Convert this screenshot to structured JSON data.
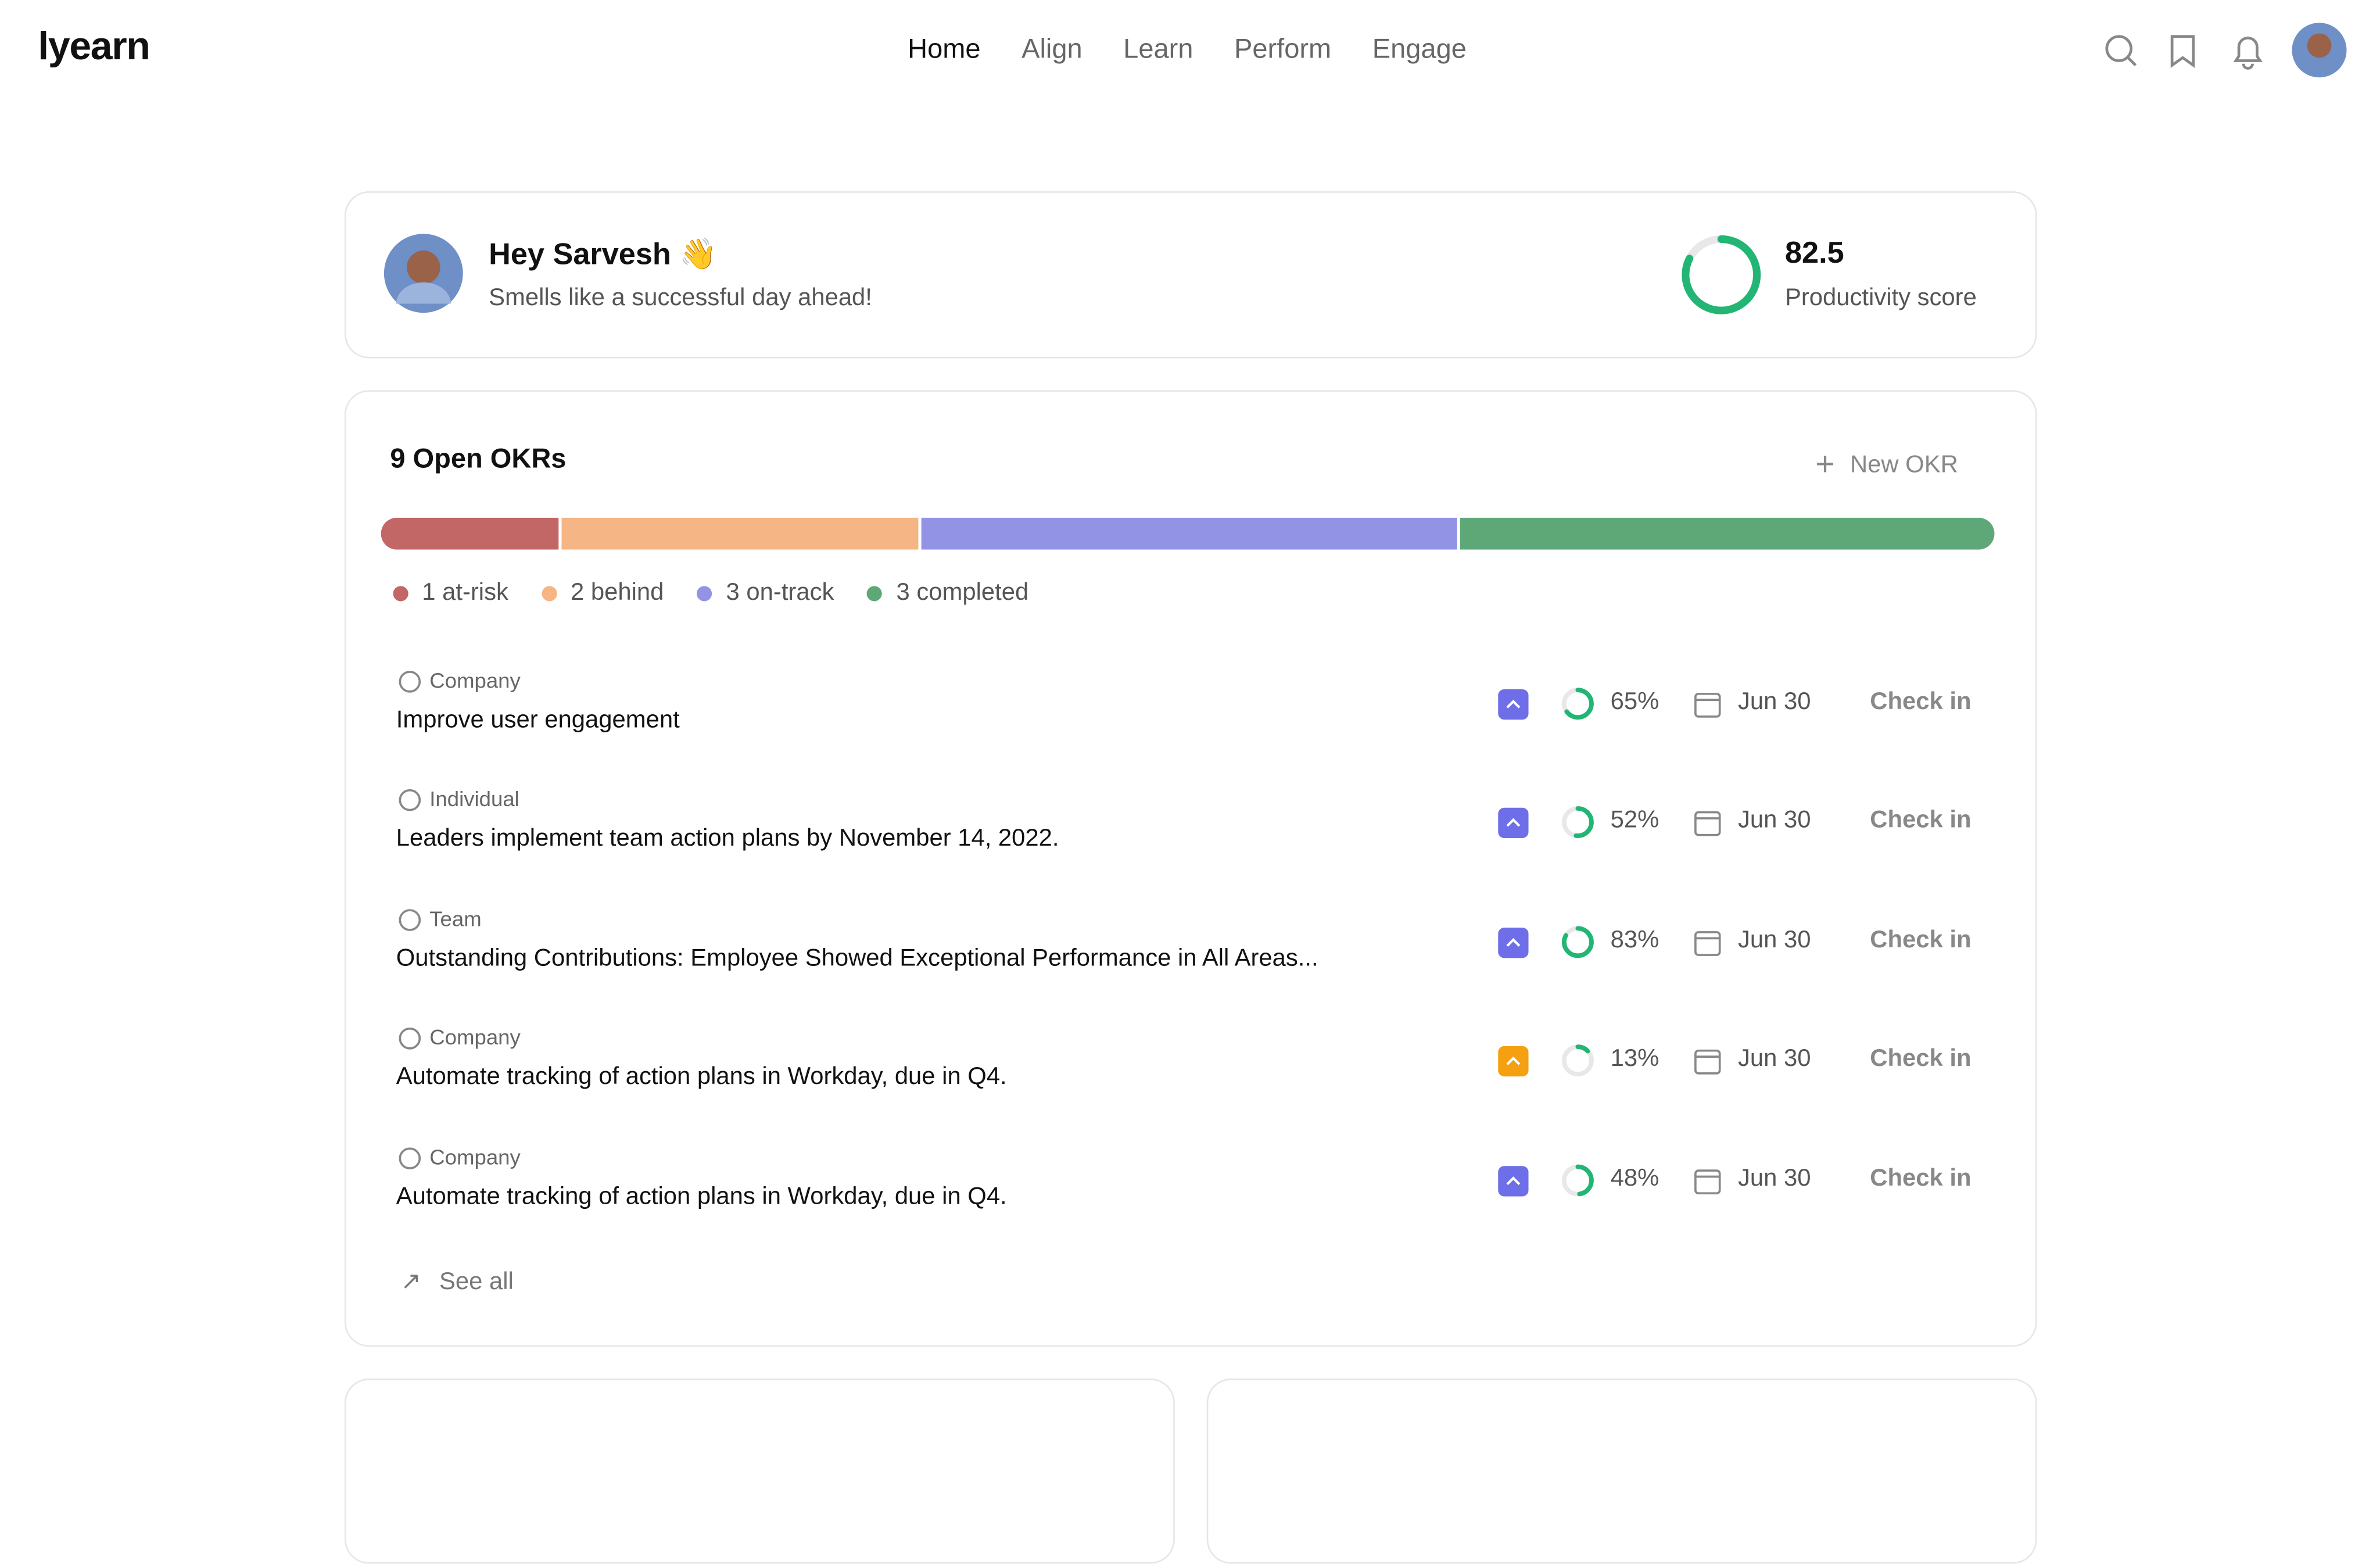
{
  "header": {
    "logo": "lyearn",
    "nav": [
      "Home",
      "Align",
      "Learn",
      "Perform",
      "Engage"
    ],
    "active_nav": 0
  },
  "greeting": {
    "title": "Hey Sarvesh 👋",
    "subtitle": "Smells like a successful day ahead!",
    "score": 82.5,
    "score_label": "Productivity score",
    "score_color": "#22b573"
  },
  "okrs": {
    "title": "9 Open OKRs",
    "new_button": "New OKR",
    "status": [
      {
        "count": 1,
        "label": "at-risk",
        "color": "#c26666"
      },
      {
        "count": 2,
        "label": "behind",
        "color": "#f5b584"
      },
      {
        "count": 3,
        "label": "on-track",
        "color": "#9393e6"
      },
      {
        "count": 3,
        "label": "completed",
        "color": "#5ea878"
      }
    ],
    "items": [
      {
        "type": "Company",
        "title": "Improve user engagement",
        "progress": 65,
        "progress_label": "65%",
        "due": "Jun 30",
        "action": "Check in",
        "priority_color": "#6d6ee8"
      },
      {
        "type": "Individual",
        "title": "Leaders implement team action plans by November 14, 2022.",
        "progress": 52,
        "progress_label": "52%",
        "due": "Jun 30",
        "action": "Check in",
        "priority_color": "#6d6ee8"
      },
      {
        "type": "Team",
        "title": "Outstanding Contributions: Employee Showed Exceptional Performance in All Areas...",
        "progress": 83,
        "progress_label": "83%",
        "due": "Jun 30",
        "action": "Check in",
        "priority_color": "#6d6ee8"
      },
      {
        "type": "Company",
        "title": "Automate tracking of action plans in Workday, due in Q4.",
        "progress": 13,
        "progress_label": "13%",
        "due": "Jun 30",
        "action": "Check in",
        "priority_color": "#f5a010"
      },
      {
        "type": "Company",
        "title": "Automate tracking of action plans in Workday, due in Q4.",
        "progress": 48,
        "progress_label": "48%",
        "due": "Jun 30",
        "action": "Check in",
        "priority_color": "#6d6ee8"
      }
    ],
    "see_all": "See all"
  }
}
